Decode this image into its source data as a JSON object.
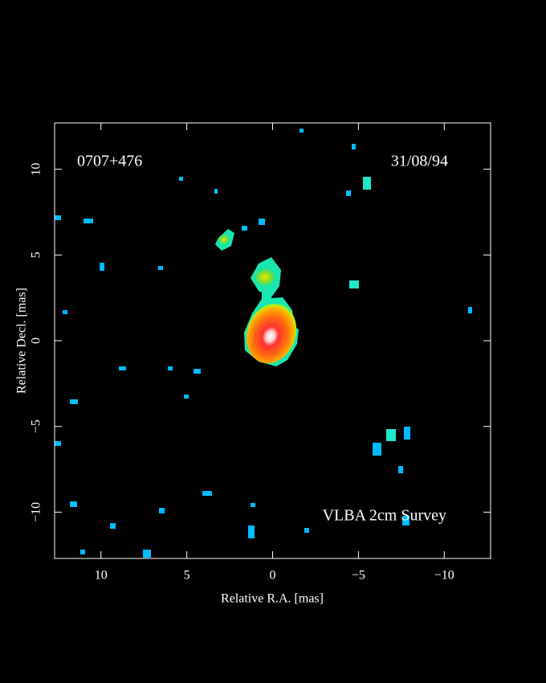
{
  "chart_data": {
    "type": "image",
    "xlabel": "Relative R.A. [mas]",
    "ylabel": "Relative Decl. [mas]",
    "xlim": [
      12.7,
      -12.7
    ],
    "ylim": [
      -12.7,
      12.7
    ],
    "xticks": [
      10,
      5,
      0,
      {
        "value": -5,
        "label": "−5"
      },
      {
        "value": -10,
        "label": "−10"
      }
    ],
    "yticks": [
      {
        "value": -10,
        "label": "−10"
      },
      {
        "value": -5,
        "label": "−5"
      },
      0,
      5,
      10
    ],
    "annotations": [
      "0707+476",
      "31/08/94",
      "VLBA 2cm Survey"
    ]
  }
}
